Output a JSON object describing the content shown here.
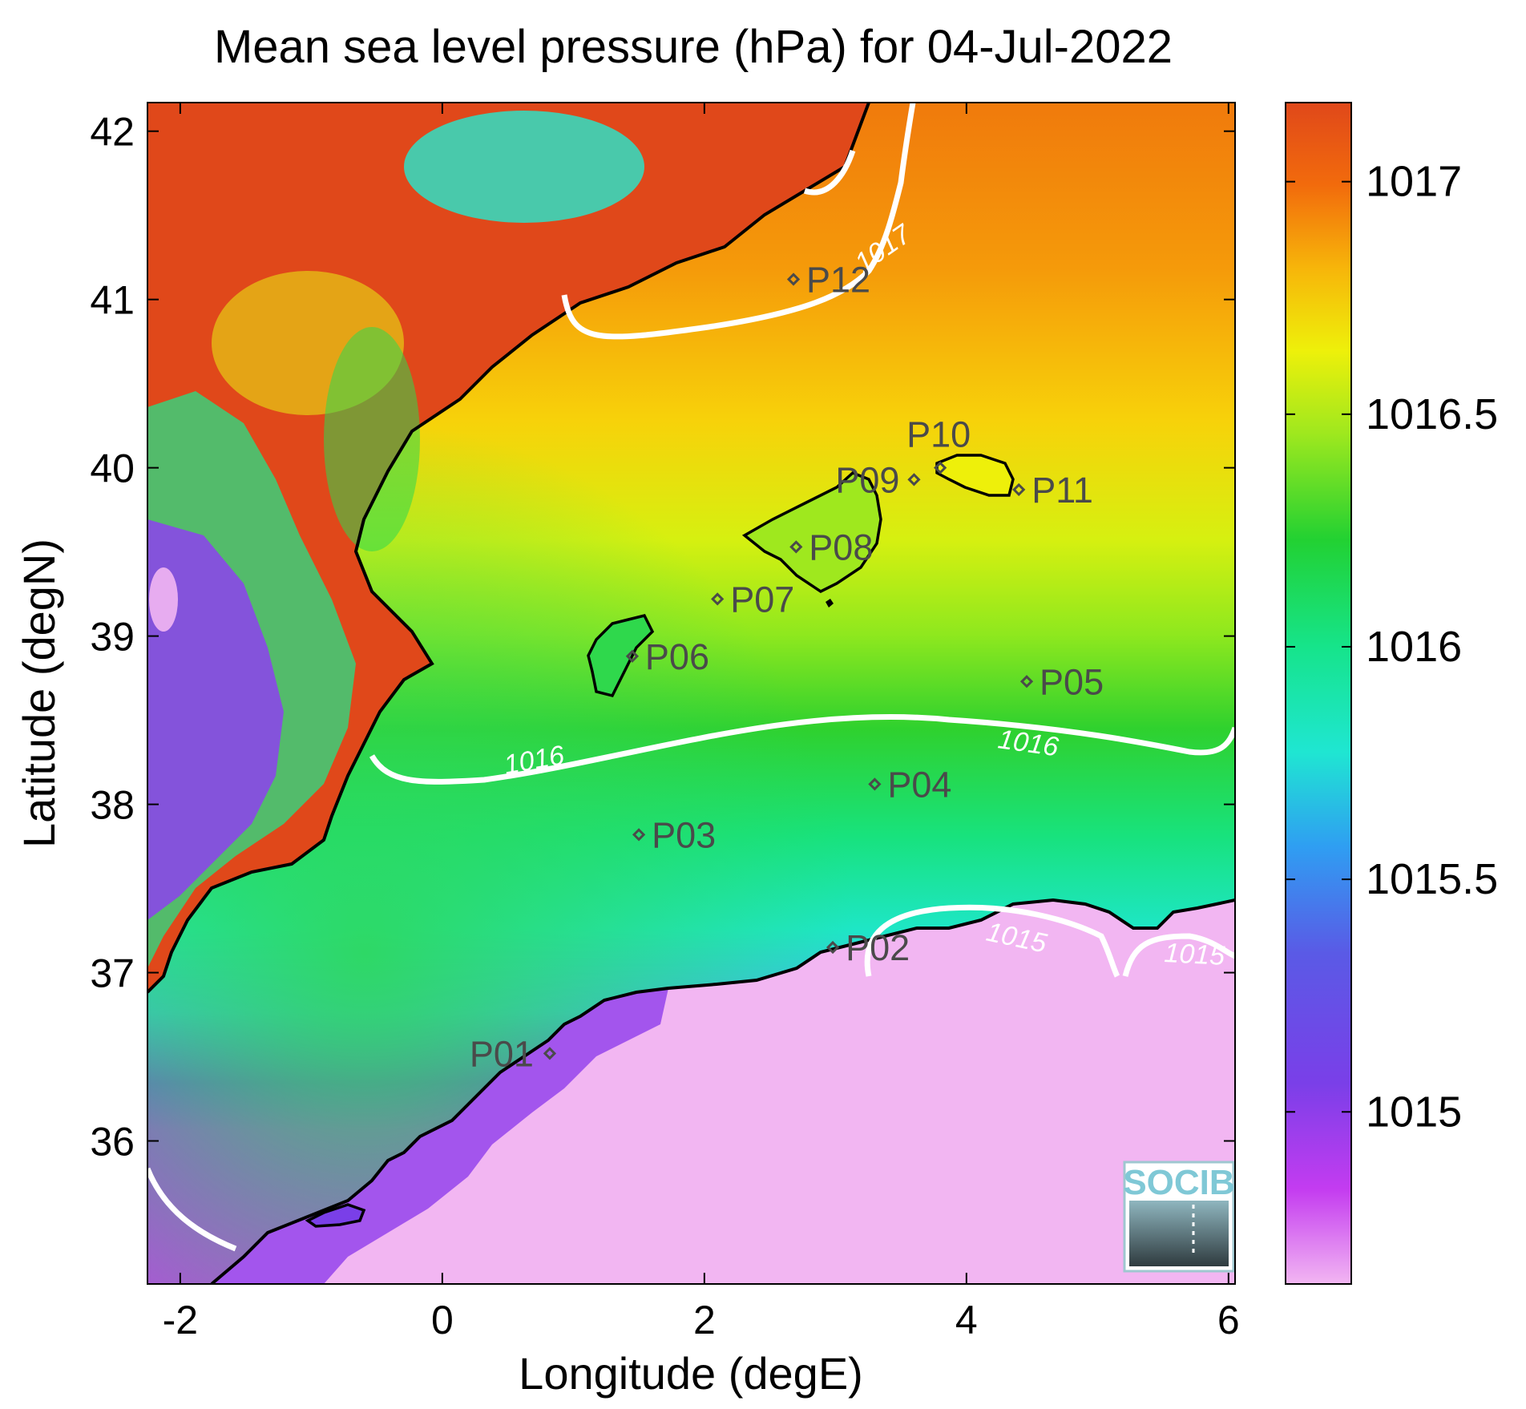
{
  "title": "Mean sea level pressure (hPa) for 04-Jul-2022",
  "x_axis": {
    "label": "Longitude (degE)",
    "ticks": [
      {
        "value": -2,
        "label": "-2"
      },
      {
        "value": 0,
        "label": "0"
      },
      {
        "value": 2,
        "label": "2"
      },
      {
        "value": 4,
        "label": "4"
      },
      {
        "value": 6,
        "label": "6"
      }
    ],
    "range": [
      -2.25,
      6.05
    ]
  },
  "y_axis": {
    "label": "Latitude (degN)",
    "ticks": [
      {
        "value": 36,
        "label": "36"
      },
      {
        "value": 37,
        "label": "37"
      },
      {
        "value": 38,
        "label": "38"
      },
      {
        "value": 39,
        "label": "39"
      },
      {
        "value": 40,
        "label": "40"
      },
      {
        "value": 41,
        "label": "41"
      },
      {
        "value": 42,
        "label": "42"
      }
    ],
    "range": [
      35.15,
      42.17
    ]
  },
  "colorbar": {
    "ticks": [
      {
        "value": 1015,
        "label": "1015"
      },
      {
        "value": 1015.5,
        "label": "1015.5"
      },
      {
        "value": 1016,
        "label": "1016"
      },
      {
        "value": 1016.5,
        "label": "1016.5"
      },
      {
        "value": 1017,
        "label": "1017"
      }
    ],
    "range": [
      1014.63,
      1017.17
    ]
  },
  "stations": [
    {
      "id": "P01",
      "lon": 0.82,
      "lat": 36.52
    },
    {
      "id": "P02",
      "lon": 2.98,
      "lat": 37.15
    },
    {
      "id": "P03",
      "lon": 1.5,
      "lat": 37.82
    },
    {
      "id": "P04",
      "lon": 3.3,
      "lat": 38.12
    },
    {
      "id": "P05",
      "lon": 4.46,
      "lat": 38.73
    },
    {
      "id": "P06",
      "lon": 1.45,
      "lat": 38.88
    },
    {
      "id": "P07",
      "lon": 2.1,
      "lat": 39.22
    },
    {
      "id": "P08",
      "lon": 2.7,
      "lat": 39.53
    },
    {
      "id": "P09",
      "lon": 3.6,
      "lat": 39.93
    },
    {
      "id": "P10",
      "lon": 3.8,
      "lat": 40.0
    },
    {
      "id": "P11",
      "lon": 4.4,
      "lat": 39.87
    },
    {
      "id": "P12",
      "lon": 2.68,
      "lat": 41.12
    }
  ],
  "contour_labels": [
    "1017",
    "1016",
    "1016",
    "1015",
    "1015"
  ],
  "logo": "SOCIB",
  "colors": {
    "high": "#e0481a",
    "mid": "#22d132",
    "low": "#f2b6f2",
    "contour": "#ffffff",
    "coast": "#000000"
  }
}
